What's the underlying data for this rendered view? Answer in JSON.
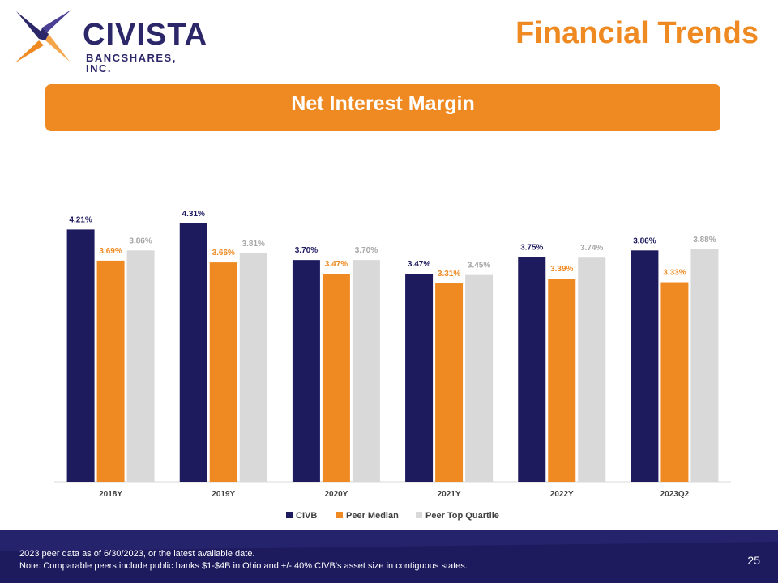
{
  "brand": {
    "name": "CIVISTA",
    "subtitle": "BANCSHARES, INC.",
    "colors": {
      "navy": "#1d1a5e",
      "orange": "#ef8a22",
      "gray": "#d9d9d9"
    }
  },
  "header": {
    "title": "Financial Trends"
  },
  "banner": {
    "text": "Net Interest Margin"
  },
  "chart_data": {
    "type": "bar",
    "title": "Net Interest Margin",
    "xlabel": "",
    "ylabel": "",
    "ylim": [
      0,
      4.31
    ],
    "grid": false,
    "legend_position": "bottom",
    "categories": [
      "2018Y",
      "2019Y",
      "2020Y",
      "2021Y",
      "2022Y",
      "2023Q2"
    ],
    "series": [
      {
        "name": "CIVB",
        "color": "#1d1a5e",
        "values": [
          4.21,
          4.31,
          3.7,
          3.47,
          3.75,
          3.86
        ],
        "labels": [
          "4.21%",
          "4.31%",
          "3.70%",
          "3.47%",
          "3.75%",
          "3.86%"
        ]
      },
      {
        "name": "Peer Median",
        "color": "#ef8a22",
        "values": [
          3.69,
          3.66,
          3.47,
          3.31,
          3.39,
          3.33
        ],
        "labels": [
          "3.69%",
          "3.66%",
          "3.47%",
          "3.31%",
          "3.39%",
          "3.33%"
        ]
      },
      {
        "name": "Peer Top Quartile",
        "color": "#d9d9d9",
        "values": [
          3.86,
          3.81,
          3.7,
          3.45,
          3.74,
          3.88
        ],
        "labels": [
          "3.86%",
          "3.81%",
          "3.70%",
          "3.45%",
          "3.74%",
          "3.88%"
        ]
      }
    ]
  },
  "footer": {
    "note_1": "2023 peer data as of  6/30/2023, or the latest available date.",
    "note_2": "Note: Comparable peers include public banks $1-$4B in Ohio and +/- 40% CIVB’s asset size in contiguous states.",
    "page_number": "25"
  }
}
